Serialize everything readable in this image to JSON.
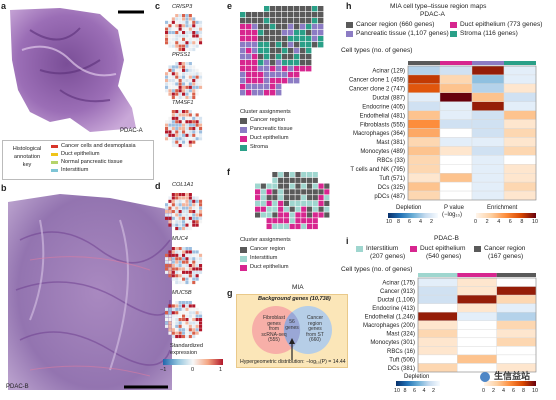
{
  "panels": {
    "a": {
      "label": "a",
      "sample": "PDAC-A",
      "key_title": [
        "Histological",
        "annotation",
        "key"
      ],
      "key_items": [
        {
          "label": "Cancer cells and desmoplasia",
          "color": "#d8352a"
        },
        {
          "label": "Duct epithelium",
          "color": "#f0c419"
        },
        {
          "label": "Normal pancreatic tissue",
          "color": "#b5d46b"
        },
        {
          "label": "Interstitium",
          "color": "#7ec5d6"
        }
      ]
    },
    "b": {
      "label": "b",
      "sample": "PDAC-B"
    },
    "c": {
      "label": "c",
      "genes": [
        "CRISP3",
        "PRSS1",
        "TM4SF1"
      ]
    },
    "d": {
      "label": "d",
      "genes": [
        "COL1A1",
        "MUC4",
        "MUC5B"
      ],
      "legend_title": [
        "Standardized",
        "expression"
      ],
      "ticks": [
        "−1",
        "0",
        "1"
      ]
    },
    "e": {
      "label": "e",
      "legend_title": "Cluster assignments",
      "items": [
        {
          "label": "Cancer region",
          "color": "#5a5a5a"
        },
        {
          "label": "Pancreatic tissue",
          "color": "#8c7cc4"
        },
        {
          "label": "Duct epithelium",
          "color": "#d7268f"
        },
        {
          "label": "Stroma",
          "color": "#2aa088"
        }
      ]
    },
    "f": {
      "label": "f",
      "legend_title": "Cluster assignments",
      "items": [
        {
          "label": "Cancer region",
          "color": "#5a5a5a"
        },
        {
          "label": "Interstitium",
          "color": "#9fd6cf"
        },
        {
          "label": "Duct epithelium",
          "color": "#d7268f"
        }
      ]
    },
    "g": {
      "label": "g",
      "title": "MIA",
      "background": "Background genes (10,738)",
      "left": [
        "Fibroblast",
        "genes",
        "from",
        "scRNA-seq",
        "(555)"
      ],
      "middle": [
        "56",
        "genes"
      ],
      "right": [
        "Cancer",
        "region",
        "genes",
        "from ST",
        "(660)"
      ],
      "footer": "Hypergeometric distribution: −log₁₀(P) = 14.44"
    },
    "h": {
      "label": "h",
      "title": [
        "MIA cell type–tissue region maps",
        "PDAC-A"
      ],
      "regions": [
        {
          "label": "Cancer region (660 genes)",
          "color": "#5a5a5a"
        },
        {
          "label": "Duct epithelium (773 genes)",
          "color": "#d7268f"
        },
        {
          "label": "Pancreatic tissue (1,107 genes)",
          "color": "#8c7cc4"
        },
        {
          "label": "Stroma (116 genes)",
          "color": "#2aa088"
        }
      ],
      "row_header": "Cell types (no. of genes)",
      "legend": {
        "depletion": "Depletion",
        "enrichment": "Enrichment",
        "pvalue": "P value",
        "pvalue_unit": "(−log₁₀)",
        "dep_ticks": [
          "10",
          "8",
          "6",
          "4",
          "2"
        ],
        "enr_ticks": [
          "0",
          "2",
          "4",
          "6",
          "8",
          "10"
        ]
      }
    },
    "i": {
      "label": "i",
      "title": "PDAC-B",
      "regions": [
        {
          "label": [
            "Interstitium",
            "(207 genes)"
          ],
          "color": "#9fd6cf"
        },
        {
          "label": [
            "Duct epithelium",
            "(540 genes)"
          ],
          "color": "#d7268f"
        },
        {
          "label": [
            "Cancer region",
            "(167 genes)"
          ],
          "color": "#5a5a5a"
        }
      ],
      "row_header": "Cell types (no. of genes)",
      "legend": {
        "depletion": "Depletion",
        "dep_ticks": [
          "10",
          "8",
          "6",
          "4",
          "2"
        ],
        "enr_ticks": [
          "0",
          "2",
          "4",
          "6",
          "8",
          "10"
        ]
      }
    },
    "watermark": "生信益站"
  },
  "chart_data": [
    {
      "type": "heatmap",
      "title": "MIA cell type–tissue region maps PDAC-A",
      "x": [
        "Cancer region",
        "Duct epithelium",
        "Pancreatic tissue",
        "Stroma"
      ],
      "y": [
        "Acinar (129)",
        "Cancer clone 1 (459)",
        "Cancer clone 2 (747)",
        "Ductal (887)",
        "Endocrine (405)",
        "Endothelial (481)",
        "Fibroblasts (555)",
        "Macrophages (364)",
        "Mast (381)",
        "Monocytes (489)",
        "RBCs (33)",
        "T cells and NK (795)",
        "Tuft (571)",
        "DCs (325)",
        "pDCs (487)"
      ],
      "values": [
        [
          -3,
          -2,
          9,
          -1
        ],
        [
          8,
          2,
          -4,
          -1
        ],
        [
          7,
          3,
          -3,
          1
        ],
        [
          -1,
          10,
          3,
          -2
        ],
        [
          -2,
          -1,
          9,
          -1
        ],
        [
          3,
          -1,
          -2,
          3
        ],
        [
          5,
          -2,
          -2,
          1
        ],
        [
          4,
          0,
          -2,
          2
        ],
        [
          2,
          -1,
          -1,
          1
        ],
        [
          3,
          1,
          -2,
          2
        ],
        [
          2,
          0,
          -1,
          0
        ],
        [
          2,
          0,
          -1,
          1
        ],
        [
          1,
          3,
          -1,
          1
        ],
        [
          3,
          0,
          -1,
          2
        ],
        [
          2,
          0,
          -1,
          1
        ]
      ],
      "color_range": [
        -10,
        10
      ]
    },
    {
      "type": "heatmap",
      "title": "PDAC-B",
      "x": [
        "Interstitium",
        "Duct epithelium",
        "Cancer region"
      ],
      "y": [
        "Acinar (175)",
        "Cancer (913)",
        "Ductal (1,106)",
        "Endocrine (413)",
        "Endothelial (1,246)",
        "Macrophages (200)",
        "Mast (324)",
        "Monocytes (301)",
        "RBCs (16)",
        "Tuft (506)",
        "DCs (381)"
      ],
      "values": [
        [
          -1,
          1,
          0
        ],
        [
          -2,
          1,
          9
        ],
        [
          -2,
          9,
          2
        ],
        [
          0,
          1,
          -1
        ],
        [
          9,
          -1,
          -3
        ],
        [
          1,
          0,
          2
        ],
        [
          2,
          0,
          1
        ],
        [
          1,
          0,
          2
        ],
        [
          1,
          0,
          0
        ],
        [
          0,
          3,
          0
        ],
        [
          2,
          0,
          1
        ]
      ],
      "color_range": [
        -10,
        10
      ]
    }
  ]
}
